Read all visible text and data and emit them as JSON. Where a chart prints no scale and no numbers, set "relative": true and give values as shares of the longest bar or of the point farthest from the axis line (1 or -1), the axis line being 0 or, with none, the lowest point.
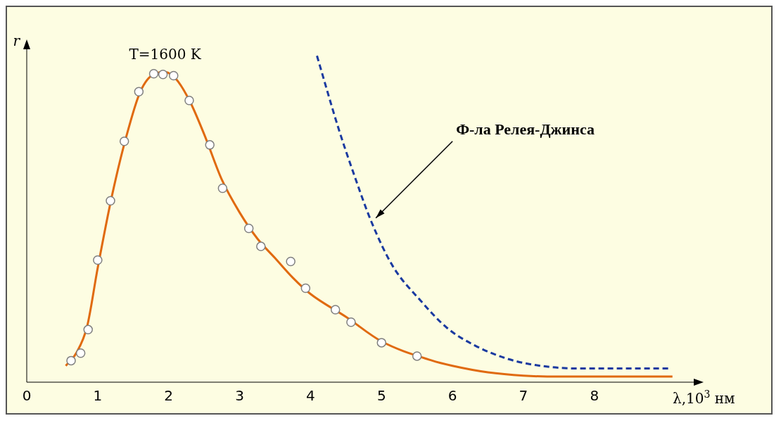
{
  "chart_data": {
    "type": "line",
    "xlabel": "λ,10$^{3}$ нм",
    "ylabel": "r",
    "relative": true,
    "xlim": [
      0,
      9.4
    ],
    "xticks": [
      0,
      1,
      2,
      3,
      4,
      5,
      6,
      7,
      8
    ],
    "grid": false,
    "legend": false,
    "annotations": [
      {
        "text": "T=1600 K",
        "x": 1.95,
        "y": 0.95
      },
      {
        "text": "Ф-ла Релея-Джинса",
        "x": 4.86,
        "y": 0.49
      }
    ],
    "series": [
      {
        "type": "line",
        "color": "#e06a10",
        "line_style": "solid",
        "marker": "none",
        "x": [
          0.55,
          0.7,
          0.85,
          1.0,
          1.2,
          1.4,
          1.6,
          1.8,
          1.95,
          2.1,
          2.3,
          2.5,
          2.75,
          3.0,
          3.25,
          3.5,
          3.75,
          4.0,
          4.5,
          5.0,
          5.7,
          6.0,
          6.5,
          7.0,
          7.5,
          8.0,
          8.5,
          9.1
        ],
        "values": [
          0.05,
          0.09,
          0.17,
          0.35,
          0.57,
          0.75,
          0.89,
          0.945,
          0.95,
          0.93,
          0.86,
          0.76,
          0.62,
          0.52,
          0.44,
          0.38,
          0.32,
          0.27,
          0.2,
          0.125,
          0.067,
          0.05,
          0.03,
          0.02,
          0.017,
          0.017,
          0.017,
          0.017
        ]
      },
      {
        "type": "scatter",
        "color": "#808080",
        "marker": "circle",
        "x": [
          0.625,
          0.76,
          0.865,
          1.0,
          1.18,
          1.375,
          1.58,
          1.79,
          1.92,
          2.07,
          2.29,
          2.58,
          2.76,
          3.13,
          3.3,
          3.72,
          3.93,
          4.35,
          4.57,
          5.0,
          5.5
        ],
        "values": [
          0.066,
          0.089,
          0.161,
          0.374,
          0.556,
          0.738,
          0.89,
          0.945,
          0.943,
          0.939,
          0.863,
          0.727,
          0.594,
          0.471,
          0.416,
          0.37,
          0.288,
          0.222,
          0.184,
          0.121,
          0.08
        ]
      },
      {
        "type": "line",
        "color": "#1a3aa0",
        "line_style": "dashed",
        "marker": "none",
        "x": [
          4.09,
          4.39,
          4.59,
          4.86,
          5.16,
          5.55,
          5.93,
          6.32,
          6.8,
          7.28,
          7.76,
          8.05,
          9.06
        ],
        "values": [
          1.0,
          0.78,
          0.65,
          0.49,
          0.355,
          0.25,
          0.165,
          0.112,
          0.07,
          0.049,
          0.042,
          0.042,
          0.042
        ]
      }
    ]
  }
}
